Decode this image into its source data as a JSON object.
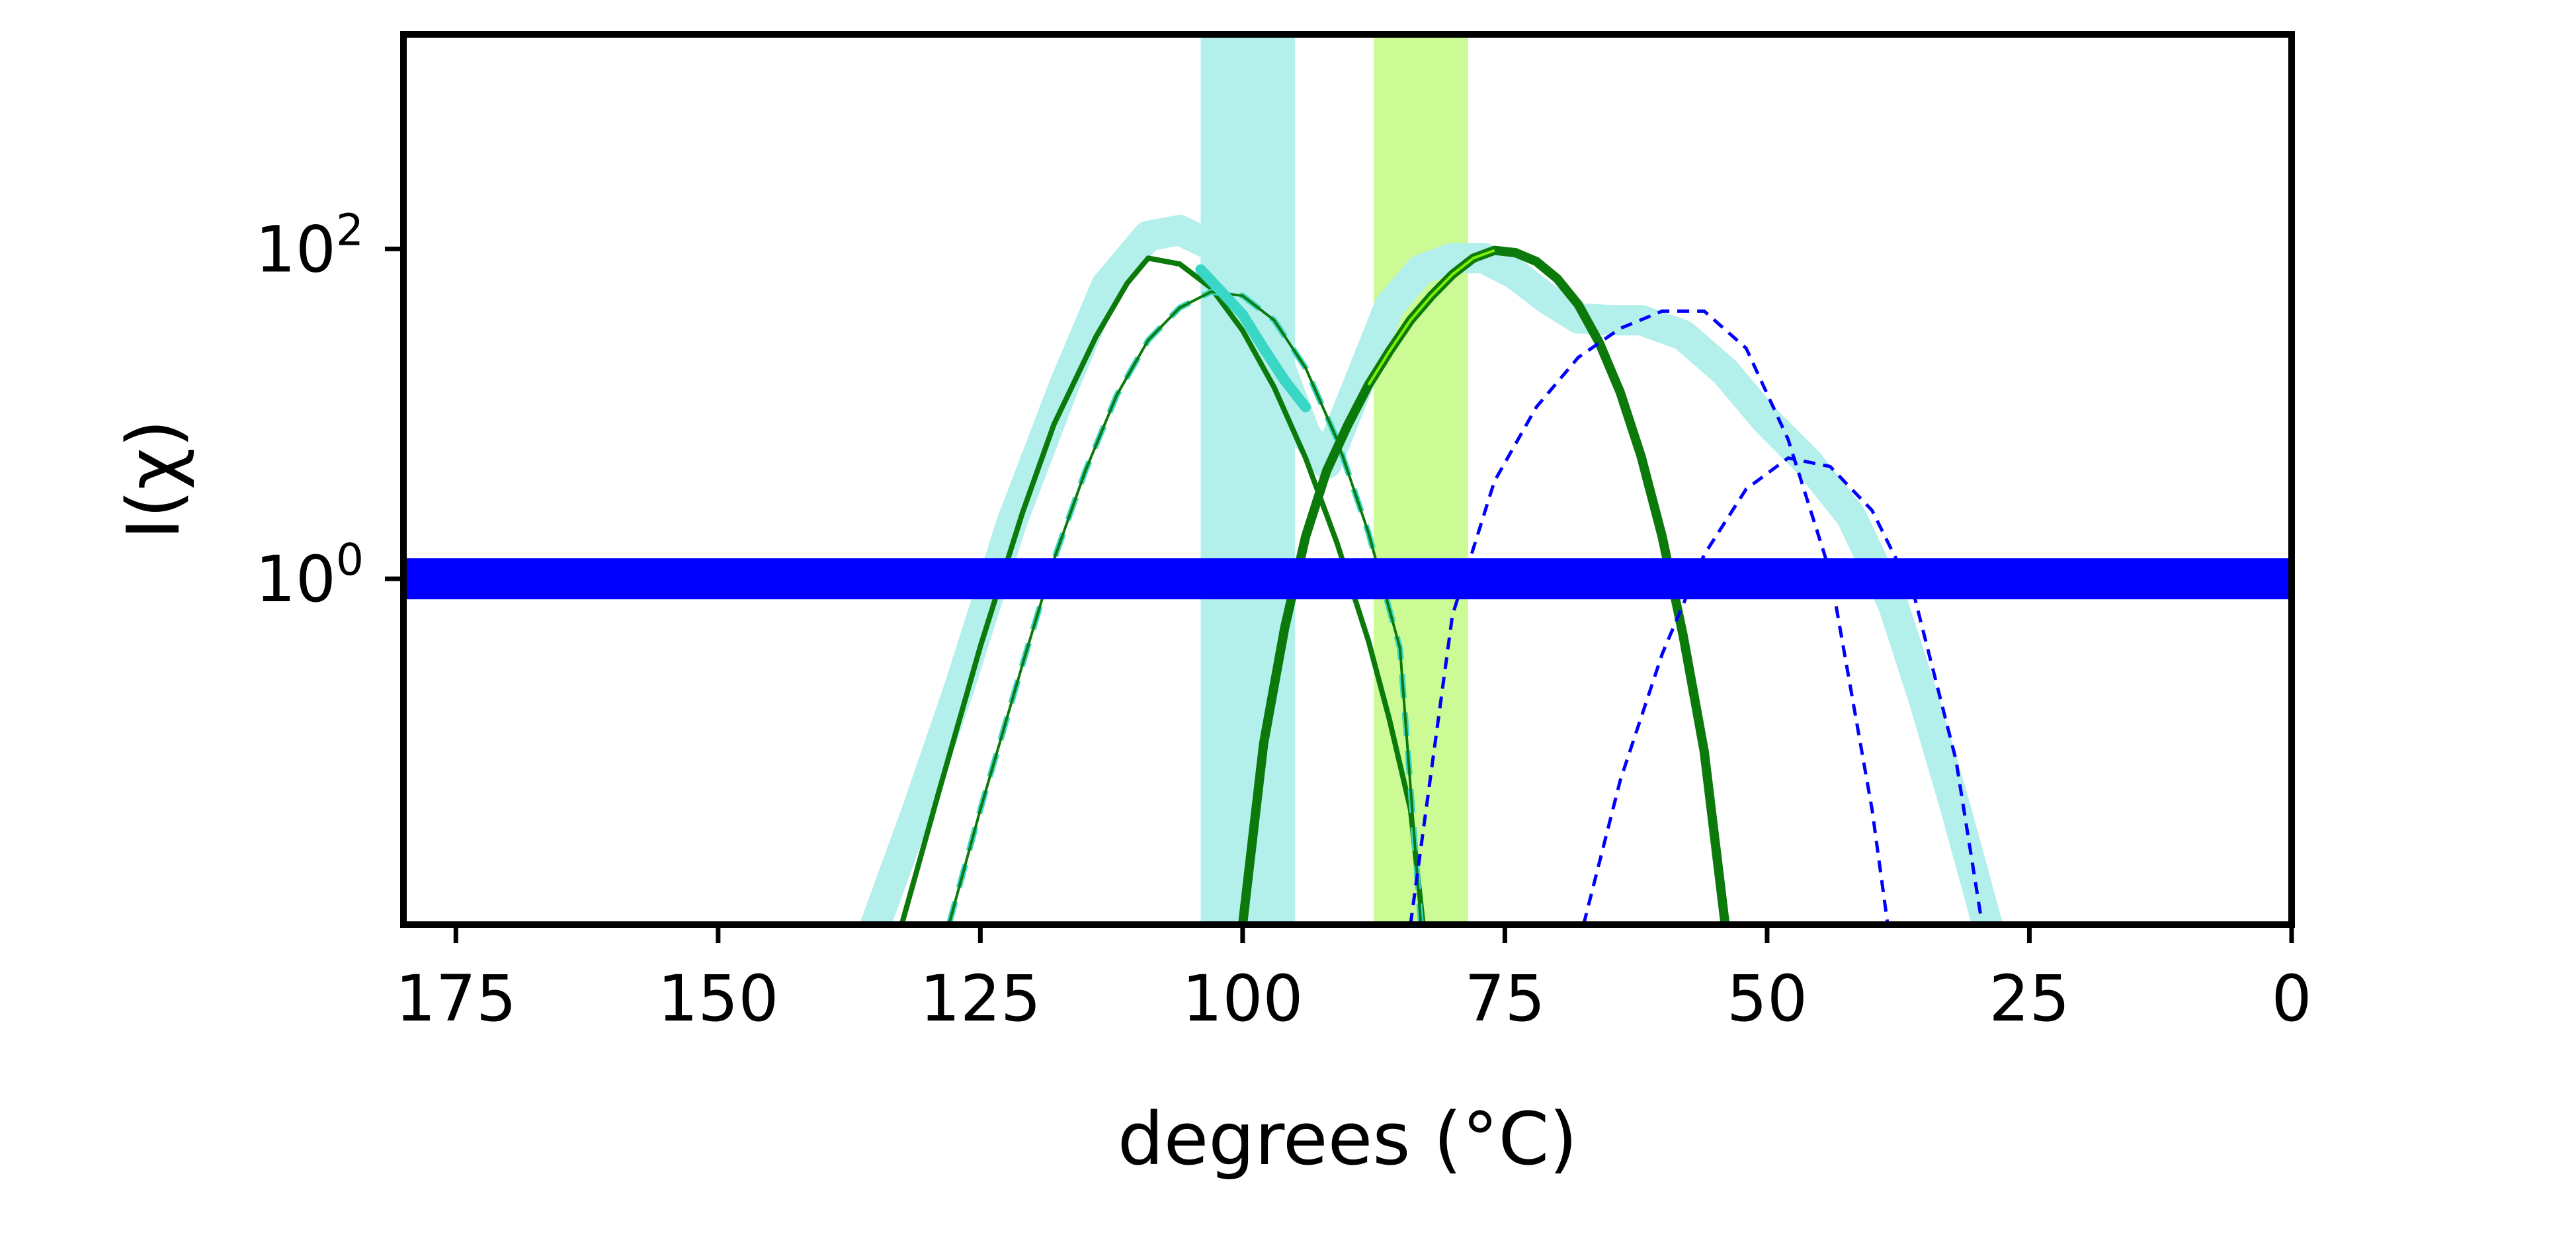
{
  "colors": {
    "envelope": "#b3efeb",
    "shade_cyan": "#b3efeb",
    "shade_lime": "#ccfb95",
    "dark_green": "#0b7a0b",
    "teal": "#3ad6c6",
    "lime": "#7ff000",
    "blue": "#0000ff"
  },
  "chart_data": {
    "type": "line",
    "title": "",
    "xlabel": "degrees (°C)",
    "ylabel": "I(χ)",
    "x_inverted": true,
    "y_scale": "log",
    "xlim": [
      180,
      0
    ],
    "ylim": [
      0.008,
      2000
    ],
    "x_ticks": [
      175,
      150,
      125,
      100,
      75,
      50,
      25,
      0
    ],
    "x_tick_labels": [
      "175",
      "150",
      "125",
      "100",
      "75",
      "50",
      "25",
      "0"
    ],
    "y_ticks": [
      1,
      100
    ],
    "y_tick_labels": [
      {
        "base": "10",
        "exp": "0"
      },
      {
        "base": "10",
        "exp": "2"
      }
    ],
    "grid": false,
    "legend": "none",
    "bands": [
      {
        "x_from": 104,
        "x_to": 95,
        "color": "cyan"
      },
      {
        "x_from": 87.5,
        "x_to": 78.5,
        "color": "lime"
      }
    ],
    "hline": {
      "y": 1,
      "color": "blue",
      "style": "thick"
    },
    "series": [
      {
        "style": "envelope",
        "x": [
          135,
          131,
          127,
          122,
          117,
          113,
          109,
          106,
          103,
          100,
          97,
          94,
          92,
          89,
          86,
          83,
          80,
          77,
          74,
          71,
          68,
          65,
          62,
          58,
          54,
          50,
          46,
          42,
          38,
          35,
          32,
          29
        ],
        "y": [
          0.008,
          0.04,
          0.22,
          2.2,
          15,
          60,
          120,
          130,
          105,
          62,
          24,
          7.5,
          5,
          15,
          45,
          75,
          88,
          88,
          70,
          50,
          38,
          37,
          37,
          30,
          18,
          9,
          5,
          2.4,
          0.7,
          0.18,
          0.04,
          0.008
        ]
      },
      {
        "style": "solid-dark-thin",
        "x": [
          132.5,
          129,
          125,
          121,
          118,
          114,
          111,
          109,
          106,
          103,
          100,
          97,
          94,
          91,
          88,
          86,
          84,
          82.8
        ],
        "y": [
          0.008,
          0.05,
          0.39,
          2.5,
          8.6,
          29.2,
          62,
          88,
          81,
          58,
          32,
          14.5,
          5.4,
          1.65,
          0.42,
          0.14,
          0.04,
          0.008
        ]
      },
      {
        "style": "dashed-teal",
        "x": [
          128,
          125,
          121,
          118,
          115,
          112,
          109,
          106,
          103,
          100,
          97,
          94,
          91,
          88,
          85,
          83
        ],
        "y": [
          0.008,
          0.04,
          0.3,
          1.3,
          4.5,
          13,
          28,
          44,
          55,
          52,
          37,
          19,
          7,
          1.9,
          0.38,
          0.008
        ]
      },
      {
        "style": "teal-segment",
        "x": [
          104,
          102,
          100,
          98,
          96,
          94
        ],
        "y": [
          75,
          55,
          40,
          25,
          16,
          11
        ]
      },
      {
        "style": "solid-dark-thick",
        "x": [
          100,
          98,
          96,
          94,
          92,
          90,
          88,
          86,
          84,
          82,
          80,
          78,
          76,
          74,
          72,
          70,
          68,
          66,
          64,
          62,
          60,
          58,
          56,
          54
        ],
        "y": [
          0.008,
          0.1,
          0.5,
          1.8,
          4.5,
          8.5,
          15,
          24,
          37,
          52,
          70,
          88,
          98,
          95,
          84,
          66,
          46,
          27,
          13.5,
          5.5,
          1.8,
          0.45,
          0.09,
          0.008
        ]
      },
      {
        "style": "dashed-blue",
        "x": [
          84,
          80,
          76,
          72,
          68,
          64,
          60,
          56,
          52,
          48,
          44,
          40,
          38.5
        ],
        "y": [
          0.008,
          0.6,
          3.9,
          11,
          22,
          33,
          42,
          42,
          25,
          7,
          1.1,
          0.04,
          0.008
        ]
      },
      {
        "style": "dashed-blue",
        "x": [
          67.5,
          64,
          60,
          56,
          52,
          48,
          44,
          40,
          36,
          32,
          29.5
        ],
        "y": [
          0.008,
          0.06,
          0.35,
          1.4,
          3.5,
          5.4,
          4.8,
          2.6,
          0.8,
          0.08,
          0.008
        ]
      }
    ]
  }
}
